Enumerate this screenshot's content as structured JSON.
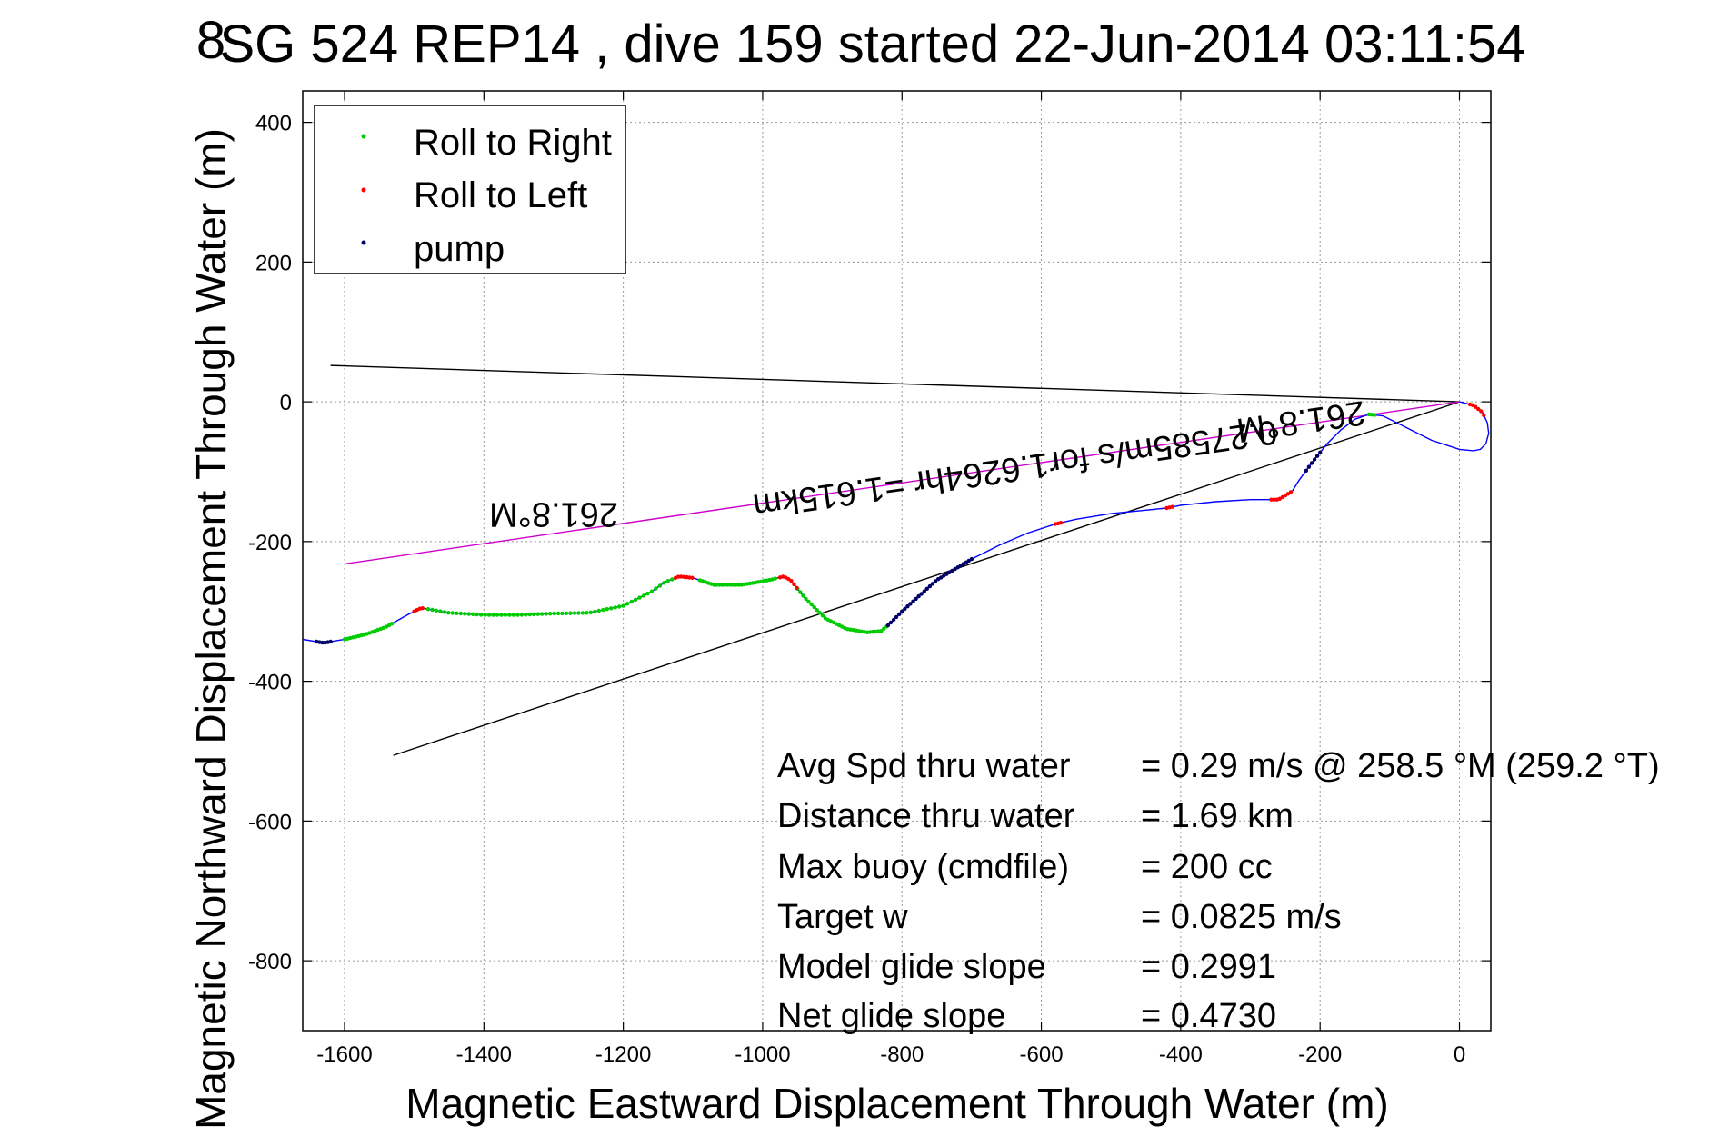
{
  "chart_data": {
    "type": "line",
    "title": "SG 524   REP14  , dive 159 started 22-Jun-2014 03:11:54",
    "title_overlay": "8",
    "xlabel": "Magnetic Eastward Displacement Through Water (m)",
    "ylabel": "Magnetic Northward Displacement Through Water (m)",
    "xlim": [
      -1660,
      45
    ],
    "ylim": [
      -900,
      445
    ],
    "xticks": [
      -1600,
      -1400,
      -1200,
      -1000,
      -800,
      -600,
      -400,
      -200,
      0
    ],
    "yticks": [
      -800,
      -600,
      -400,
      -200,
      0,
      200,
      400
    ],
    "grid": true,
    "legend": {
      "placement": "top-left",
      "entries": [
        {
          "label": "Roll to Right",
          "color": "#00cc00"
        },
        {
          "label": "Roll to Left",
          "color": "#ff0000"
        },
        {
          "label": "pump",
          "color": "#000066"
        }
      ]
    },
    "track": {
      "color": "#0000ff",
      "x": [
        0,
        20,
        33,
        40,
        42,
        38,
        30,
        20,
        0,
        -40,
        -80,
        -110,
        -130,
        -150,
        -170,
        -190,
        -210,
        -230,
        -240,
        -260,
        -300,
        -350,
        -400,
        -420,
        -450,
        -500,
        -550,
        -580,
        -620,
        -660,
        -700,
        -750,
        -800,
        -820,
        -830,
        -850,
        -880,
        -910,
        -940,
        -960,
        -970,
        -990,
        -1030,
        -1070,
        -1100,
        -1120,
        -1140,
        -1160,
        -1200,
        -1250,
        -1300,
        -1350,
        -1400,
        -1450,
        -1490,
        -1510,
        -1540,
        -1570,
        -1600,
        -1630,
        -1660
      ],
      "y": [
        0,
        -5,
        -15,
        -30,
        -45,
        -60,
        -68,
        -70,
        -68,
        -55,
        -35,
        -20,
        -18,
        -25,
        -40,
        -60,
        -85,
        -112,
        -128,
        -140,
        -140,
        -143,
        -148,
        -152,
        -155,
        -160,
        -168,
        -175,
        -188,
        -205,
        -225,
        -255,
        -300,
        -320,
        -328,
        -330,
        -325,
        -310,
        -280,
        -255,
        -250,
        -255,
        -262,
        -262,
        -252,
        -250,
        -258,
        -272,
        -292,
        -302,
        -303,
        -305,
        -305,
        -302,
        -295,
        -305,
        -322,
        -333,
        -340,
        -345,
        -340
      ]
    },
    "series_segments": {
      "roll_right": [
        [
          -1600,
          -1530
        ],
        [
          -1480,
          -1130
        ],
        [
          -1090,
          -980
        ],
        [
          -950,
          -820
        ],
        [
          -130,
          -120
        ]
      ],
      "roll_left": [
        [
          -1500,
          -1485
        ],
        [
          -1125,
          -1100
        ],
        [
          -975,
          -950
        ],
        [
          -580,
          -570
        ],
        [
          -420,
          -410
        ],
        [
          -270,
          -240
        ],
        [
          15,
          35
        ]
      ],
      "pump": [
        [
          -1640,
          -1620
        ],
        [
          -820,
          -700
        ],
        [
          -220,
          -200
        ]
      ]
    },
    "reference_lines": [
      {
        "color": "#000000",
        "x": [
          -1620,
          0
        ],
        "y": [
          52,
          0
        ]
      },
      {
        "color": "#000000",
        "x": [
          -1530,
          0
        ],
        "y": [
          -506,
          0
        ]
      },
      {
        "color": "#cc00cc",
        "x": [
          -1600,
          0
        ],
        "y": [
          -232,
          0
        ]
      }
    ],
    "annotations": [
      {
        "text": "261.8°M",
        "x": -1300,
        "y": -145,
        "rotation": 180
      },
      {
        "text": "0.27585m/s for1.6264hr =1.615km",
        "x": -640,
        "y": -80,
        "rotation": 171.8
      },
      {
        "text": "261.8°M",
        "x": -230,
        "y": -12,
        "rotation": 171.8
      }
    ],
    "stats": [
      {
        "label": "Avg Spd thru water",
        "value": "=  0.29 m/s @ 258.5 °M (259.2 °T)"
      },
      {
        "label": "Distance thru water",
        "value": "=  1.69 km"
      },
      {
        "label": "Max buoy (cmdfile)",
        "value": "= 200 cc"
      },
      {
        "label": "Target w",
        "value": "= 0.0825 m/s"
      },
      {
        "label": "Model glide slope",
        "value": "= 0.2991"
      },
      {
        "label": "Net glide slope",
        "value": "= 0.4730"
      }
    ]
  }
}
